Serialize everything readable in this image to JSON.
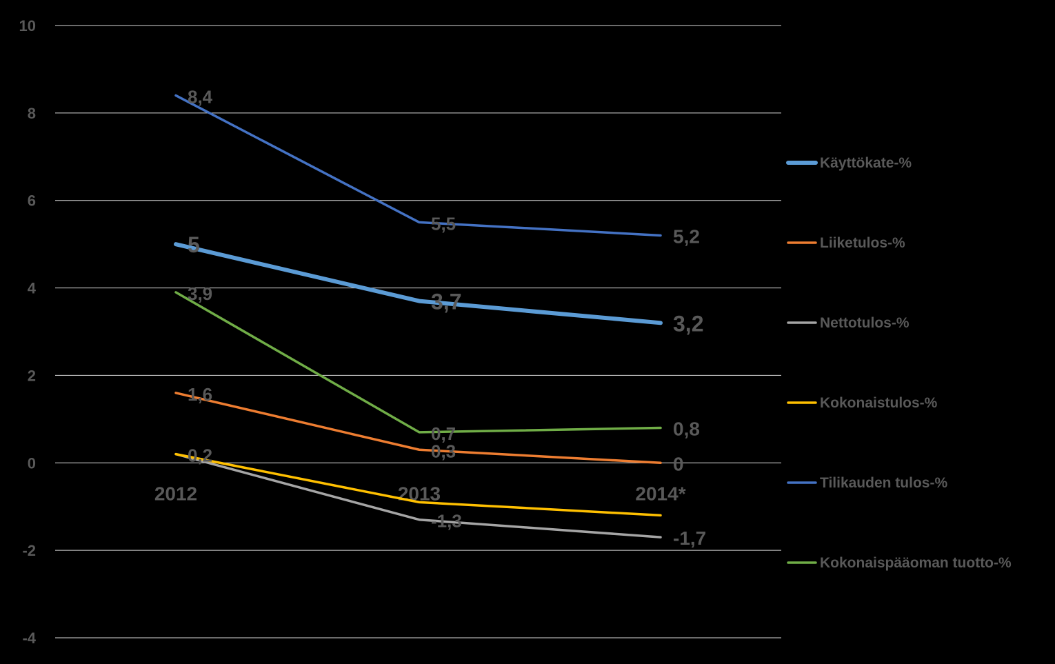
{
  "chart_data": {
    "type": "line",
    "categories": [
      "2012",
      "2013",
      "2014*"
    ],
    "ylim": [
      -4,
      10
    ],
    "yticks": [
      "10",
      "8",
      "6",
      "4",
      "2",
      "0",
      "-2",
      "-4"
    ],
    "grid": true,
    "legend_position": "right",
    "series": [
      {
        "name": "Käyttökate-%",
        "values": [
          5,
          3.7,
          3.2
        ],
        "labels": [
          "5",
          "3,7",
          "3,2"
        ],
        "color": "#5B9BD5",
        "thick": true
      },
      {
        "name": "Liiketulos-%",
        "values": [
          1.6,
          0.3,
          0
        ],
        "labels": [
          "1,6",
          "0,3",
          "0"
        ],
        "color": "#ED7D31"
      },
      {
        "name": "Nettotulos-%",
        "values": [
          0.2,
          -1.3,
          -1.7
        ],
        "labels": [
          "",
          "-1,3",
          "-1,7"
        ],
        "color": "#A5A5A5"
      },
      {
        "name": "Kokonaistulos-%",
        "values": [
          0.2,
          -0.9,
          -1.2
        ],
        "labels": [
          "0,2",
          "",
          ""
        ],
        "color": "#FFC000"
      },
      {
        "name": "Tilikauden tulos-%",
        "values": [
          8.4,
          5.5,
          5.2
        ],
        "labels": [
          "8,4",
          "5,5",
          "5,2"
        ],
        "color": "#4472C4"
      },
      {
        "name": "Kokonaispääoman tuotto-%",
        "values": [
          3.9,
          0.7,
          0.8
        ],
        "labels": [
          "3,9",
          "0,7",
          "0,8"
        ],
        "color": "#70AD47"
      }
    ]
  }
}
